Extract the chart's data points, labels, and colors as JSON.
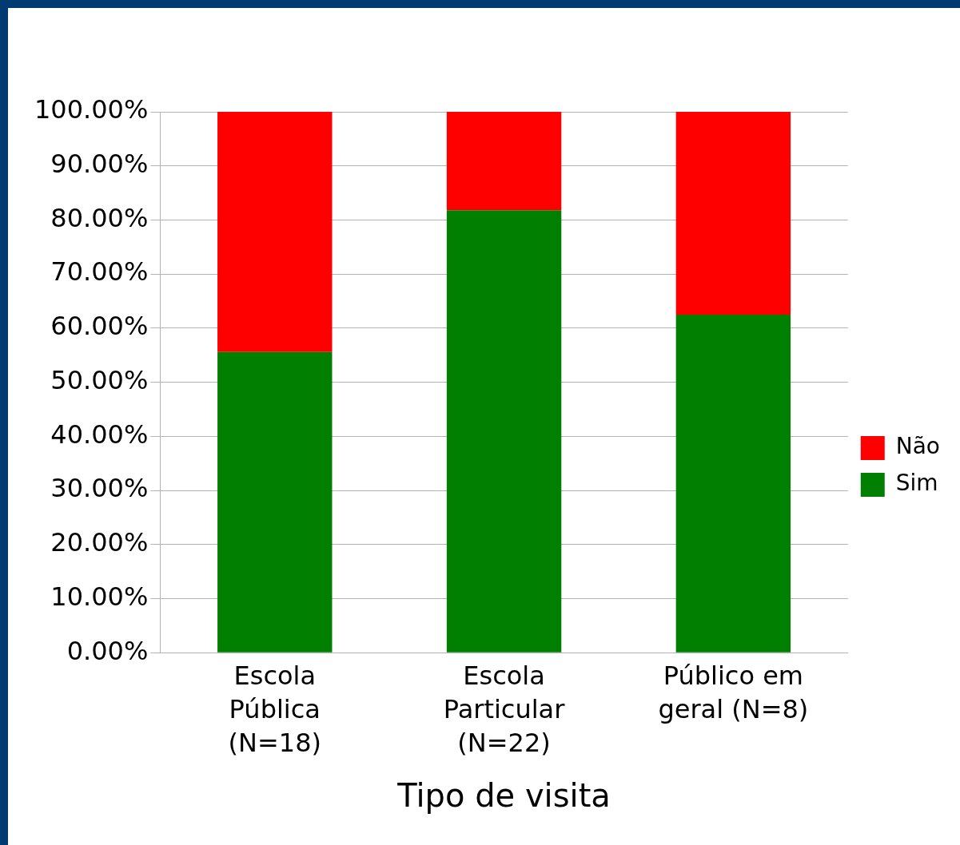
{
  "chart_data": {
    "type": "bar",
    "stacked": true,
    "xlabel": "Tipo de visita",
    "categories": [
      "Escola Pública (N=18)",
      "Escola Particular (N=22)",
      "Público em geral (N=8)"
    ],
    "series": [
      {
        "name": "Sim",
        "color": "#007f00",
        "values": [
          55.6,
          81.8,
          62.5
        ]
      },
      {
        "name": "Não",
        "color": "#ff0000",
        "values": [
          44.4,
          18.2,
          37.5
        ]
      }
    ],
    "ylim": [
      0,
      100
    ],
    "yticks": [
      {
        "value": 0,
        "label": "0.00%"
      },
      {
        "value": 10,
        "label": "10.00%"
      },
      {
        "value": 20,
        "label": "20.00%"
      },
      {
        "value": 30,
        "label": "30.00%"
      },
      {
        "value": 40,
        "label": "40.00%"
      },
      {
        "value": 50,
        "label": "50.00%"
      },
      {
        "value": 60,
        "label": "60.00%"
      },
      {
        "value": 70,
        "label": "70.00%"
      },
      {
        "value": 80,
        "label": "80.00%"
      },
      {
        "value": 90,
        "label": "90.00%"
      },
      {
        "value": 100,
        "label": "100.00%"
      }
    ],
    "grid": "y",
    "legend": "right"
  }
}
